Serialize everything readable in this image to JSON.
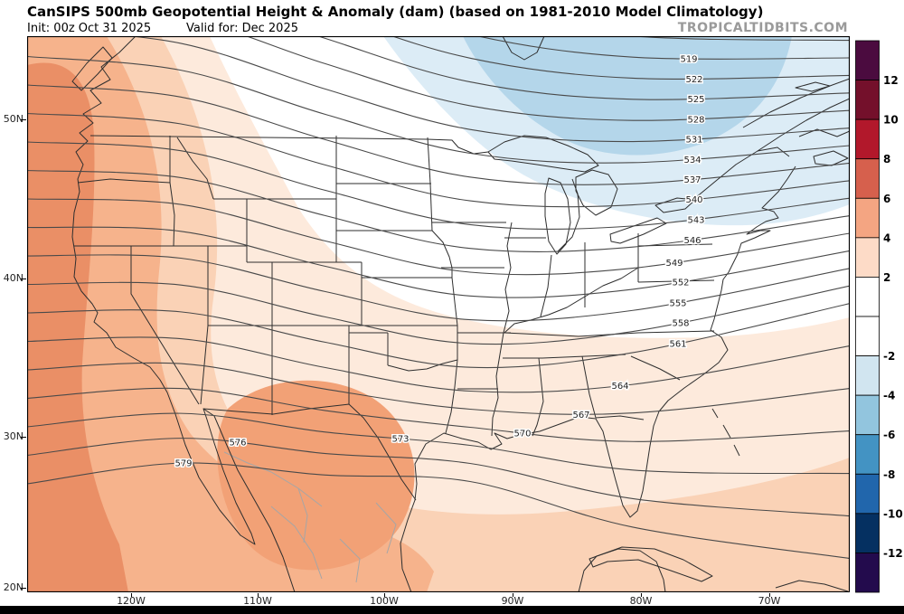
{
  "header": {
    "title": "CanSIPS 500mb Geopotential Height & Anomaly (dam) (based on 1981-2010 Model Climatology)",
    "init": "Init: 00z Oct 31 2025",
    "valid": "Valid for: Dec 2025",
    "watermark": "TROPICALTIDBITS.COM"
  },
  "axes": {
    "lat": [
      "50N",
      "40N",
      "30N",
      "20N"
    ],
    "lon": [
      "120W",
      "110W",
      "100W",
      "90W",
      "80W",
      "70W"
    ]
  },
  "chart_data": {
    "type": "contour-map",
    "model": "CanSIPS",
    "field": "500mb Geopotential Height & Anomaly",
    "units": "dam",
    "climatology": "1981-2010 Model Climatology",
    "init_time": "00z Oct 31 2025",
    "valid_period": "Dec 2025",
    "contour_interval": 3,
    "contour_levels": [
      519,
      522,
      525,
      528,
      531,
      534,
      537,
      540,
      543,
      546,
      549,
      552,
      555,
      558,
      561,
      564,
      567,
      570,
      573,
      576,
      579
    ],
    "lat_ticks": [
      "50N",
      "40N",
      "30N",
      "20N"
    ],
    "lon_ticks": [
      "120W",
      "110W",
      "100W",
      "90W",
      "80W",
      "70W"
    ],
    "colorbar": {
      "tick_labels_top_to_bottom": [
        "12",
        "10",
        "8",
        "6",
        "4",
        "2",
        "-2",
        "-4",
        "-6",
        "-8",
        "-10",
        "-12"
      ],
      "segment_colors_top_to_bottom": [
        "#4b0b3f",
        "#74102b",
        "#b2182b",
        "#d6604d",
        "#f4a582",
        "#fddbc7",
        "#ffffff",
        "#ffffff",
        "#d1e5f0",
        "#92c5de",
        "#4393c3",
        "#2166ac",
        "#053061",
        "#230b4d"
      ]
    },
    "anomaly_shading": {
      "positive_region": "western and southern United States / Mexico",
      "negative_region": "south-central Canada, Great Lakes, Northeast"
    }
  },
  "palette": {
    "warm_light": "#fdeadc",
    "warm_2": "#fad2b6",
    "warm_3": "#f6b38c",
    "warm_4": "#f2a176",
    "warm_5": "#ea8f66",
    "cool_light": "#dcecf6",
    "cool_2": "#b4d6ea",
    "contour_line": "#4a4a4a",
    "geo_border": "#2e2e2e",
    "geo_border_light": "#a6a6a6",
    "watermark_color": "#9a9a9a",
    "bottom_bar": "#000000"
  }
}
